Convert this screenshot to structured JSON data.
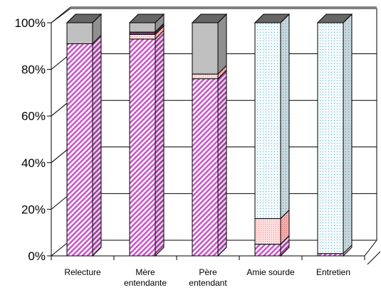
{
  "chart_data": {
    "type": "bar",
    "stacked": true,
    "three_d": true,
    "categories": [
      [
        "Relecture"
      ],
      [
        "Mère",
        "entendante"
      ],
      [
        "Père",
        "entendant"
      ],
      [
        "Amie sourde"
      ],
      [
        "Entretien"
      ]
    ],
    "y_tick_labels": [
      "0%",
      "20%",
      "40%",
      "60%",
      "80%",
      "100%"
    ],
    "ylim": [
      0,
      100
    ],
    "grid": true,
    "legend": "none",
    "series": [
      {
        "values": [
          91,
          93,
          76,
          5,
          1
        ],
        "color": "#cc66cc",
        "pattern": "diagonal-hatch"
      },
      {
        "values": [
          0,
          2,
          2,
          11,
          0
        ],
        "color": "#ffcccc",
        "pattern": "dotted"
      },
      {
        "values": [
          0,
          1,
          0,
          0,
          0
        ],
        "color": "#7a3f7a",
        "pattern": "solid"
      },
      {
        "values": [
          9,
          4,
          22,
          0,
          0
        ],
        "color": "#c0c0c0",
        "pattern": "solid"
      },
      {
        "values": [
          0,
          0,
          0,
          84,
          99
        ],
        "color": "#e6f4fa",
        "pattern": "dotted"
      }
    ]
  }
}
